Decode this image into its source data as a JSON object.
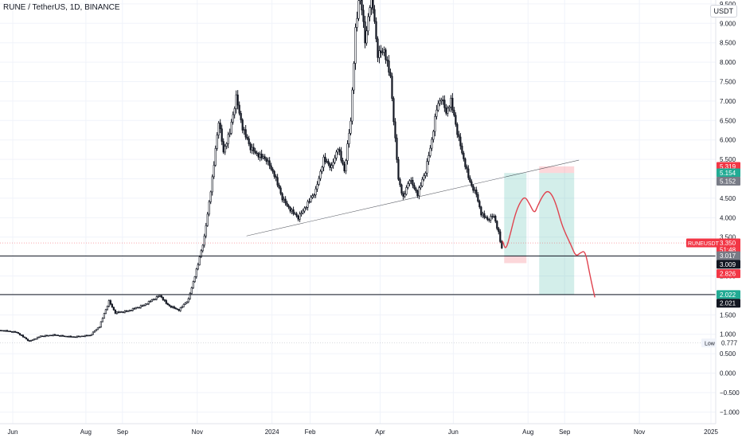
{
  "chart_data": {
    "type": "candlestick",
    "title": "RUNE / TetherUS, 1D, BINANCE",
    "currency": "USDT",
    "ylim": [
      -1.3,
      9.6
    ],
    "y_ticks": [
      9.5,
      9.0,
      8.5,
      8.0,
      7.5,
      7.0,
      6.5,
      6.0,
      5.5,
      5.0,
      4.5,
      4.0,
      3.5,
      3.0,
      2.5,
      2.0,
      1.5,
      1.0,
      0.5,
      0.0,
      -0.5,
      -1.0
    ],
    "y_tick_labels": [
      "9.500",
      "9.000",
      "8.500",
      "8.000",
      "7.500",
      "7.000",
      "6.500",
      "6.000",
      "5.500",
      "5.000",
      "4.500",
      "4.000",
      "3.500",
      "3.000",
      "2.500",
      "2.000",
      "1.500",
      "1.000",
      "0.500",
      "0.000",
      "−0.500",
      "−1.000"
    ],
    "x_range": [
      0,
      450
    ],
    "x_ticks": [
      {
        "day": 8,
        "label": "Jun"
      },
      {
        "day": 54,
        "label": "Aug"
      },
      {
        "day": 77,
        "label": "Sep"
      },
      {
        "day": 124,
        "label": "Nov"
      },
      {
        "day": 171,
        "label": "2024"
      },
      {
        "day": 195,
        "label": "Feb"
      },
      {
        "day": 239,
        "label": "Apr"
      },
      {
        "day": 285,
        "label": "Jun"
      },
      {
        "day": 332,
        "label": "Aug"
      },
      {
        "day": 355,
        "label": "Sep"
      },
      {
        "day": 402,
        "label": "Nov"
      },
      {
        "day": 447,
        "label": "2025"
      }
    ],
    "price_path": [
      [
        0,
        1.1
      ],
      [
        10,
        1.05
      ],
      [
        18,
        0.82
      ],
      [
        25,
        0.95
      ],
      [
        33,
        0.98
      ],
      [
        45,
        0.93
      ],
      [
        56,
        0.97
      ],
      [
        62,
        1.2
      ],
      [
        68,
        1.85
      ],
      [
        72,
        1.55
      ],
      [
        80,
        1.6
      ],
      [
        90,
        1.75
      ],
      [
        100,
        2.0
      ],
      [
        105,
        1.75
      ],
      [
        112,
        1.62
      ],
      [
        118,
        1.9
      ],
      [
        124,
        2.8
      ],
      [
        128,
        3.5
      ],
      [
        133,
        5.0
      ],
      [
        137,
        6.5
      ],
      [
        140,
        5.7
      ],
      [
        144,
        6.2
      ],
      [
        148,
        7.1
      ],
      [
        152,
        6.3
      ],
      [
        157,
        5.8
      ],
      [
        162,
        5.6
      ],
      [
        167,
        5.5
      ],
      [
        172,
        5.1
      ],
      [
        177,
        4.5
      ],
      [
        182,
        4.2
      ],
      [
        187,
        4.0
      ],
      [
        192,
        4.3
      ],
      [
        198,
        4.7
      ],
      [
        203,
        5.5
      ],
      [
        208,
        5.3
      ],
      [
        212,
        5.8
      ],
      [
        216,
        5.2
      ],
      [
        220,
        6.5
      ],
      [
        223,
        8.8
      ],
      [
        226,
        9.9
      ],
      [
        229,
        8.5
      ],
      [
        233,
        9.8
      ],
      [
        237,
        8.2
      ],
      [
        241,
        8.3
      ],
      [
        245,
        7.6
      ],
      [
        248,
        6.0
      ],
      [
        250,
        5.0
      ],
      [
        253,
        4.5
      ],
      [
        257,
        5.0
      ],
      [
        262,
        4.6
      ],
      [
        267,
        5.2
      ],
      [
        271,
        6.0
      ],
      [
        274,
        6.8
      ],
      [
        277,
        7.1
      ],
      [
        280,
        6.7
      ],
      [
        283,
        7.0
      ],
      [
        287,
        6.2
      ],
      [
        291,
        5.5
      ],
      [
        295,
        4.9
      ],
      [
        299,
        4.6
      ],
      [
        302,
        4.1
      ],
      [
        306,
        3.95
      ],
      [
        310,
        4.05
      ],
      [
        313,
        3.6
      ],
      [
        315,
        3.2
      ]
    ],
    "candle_noise": [
      0.25,
      0.31,
      0.18,
      0.42,
      0.22,
      0.35,
      0.28,
      0.15,
      0.39,
      0.27
    ],
    "trendline": {
      "from": [
        155,
        3.53
      ],
      "to": [
        364,
        5.48
      ]
    },
    "horizontal_lines": [
      3.015,
      2.022
    ],
    "reference_line": 3.35,
    "low_line": 0.777,
    "trade_boxes": [
      {
        "x1": 317,
        "x2": 331,
        "entry": 3.01,
        "target": 5.15,
        "stop": 2.83
      },
      {
        "x1": 339,
        "x2": 361,
        "entry": 5.15,
        "target": 2.02,
        "stop": 5.32
      }
    ],
    "projection_path": [
      [
        316,
        3.4
      ],
      [
        318,
        3.15
      ],
      [
        321,
        3.6
      ],
      [
        324,
        4.1
      ],
      [
        327,
        4.4
      ],
      [
        330,
        4.55
      ],
      [
        333,
        4.35
      ],
      [
        336,
        4.1
      ],
      [
        338,
        4.3
      ],
      [
        341,
        4.55
      ],
      [
        344,
        4.7
      ],
      [
        347,
        4.6
      ],
      [
        350,
        4.3
      ],
      [
        353,
        3.85
      ],
      [
        356,
        3.55
      ],
      [
        359,
        3.3
      ],
      [
        362,
        3.0
      ],
      [
        365,
        3.1
      ],
      [
        368,
        3.15
      ],
      [
        371,
        2.5
      ],
      [
        374,
        1.95
      ]
    ],
    "price_labels": [
      {
        "text": "5.319",
        "price": 5.319,
        "bg": "#f23645",
        "fg": "#ffffff"
      },
      {
        "text": "5.154",
        "price": 5.154,
        "bg": "#22ab94",
        "fg": "#ffffff"
      },
      {
        "text": "5.152",
        "price": 4.94,
        "bg": "#787b86",
        "fg": "#ffffff"
      },
      {
        "text": "3.350",
        "price": 3.35,
        "bg": "#f23645",
        "fg": "#ffffff"
      },
      {
        "text": "51:48",
        "price": 3.18,
        "bg": "#f23645",
        "fg": "#ffffff"
      },
      {
        "text": "3.017",
        "price": 3.02,
        "bg": "#787b86",
        "fg": "#ffffff"
      },
      {
        "text": "3.009",
        "price": 2.8,
        "bg": "#131722",
        "fg": "#ffffff"
      },
      {
        "text": "2.826",
        "price": 2.56,
        "bg": "#f23645",
        "fg": "#ffffff"
      },
      {
        "text": "2.022",
        "price": 2.022,
        "bg": "#22ab94",
        "fg": "#ffffff"
      },
      {
        "text": "2.021",
        "price": 1.8,
        "bg": "#131722",
        "fg": "#ffffff"
      }
    ],
    "symbol_tag": "RUNEUSDT",
    "low_label": "Low",
    "low_value": "0.777",
    "colors": {
      "candle": "#131722",
      "profit": "#22ab94",
      "loss": "#f23645",
      "projection": "#e0434f",
      "grid": "#f0f3fa",
      "trendline": "#131722"
    }
  }
}
